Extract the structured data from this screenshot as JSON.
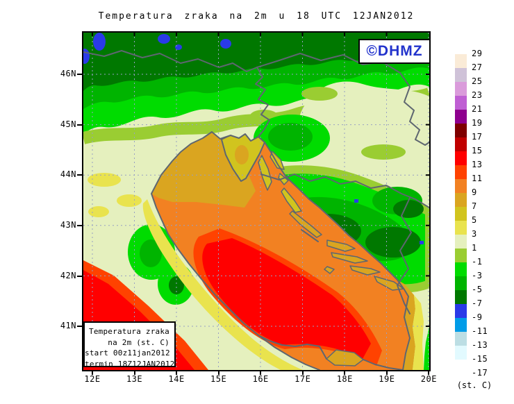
{
  "title": "Temperatura zraka na 2m u 18 UTC 12JAN2012",
  "badge": {
    "text": "©DHMZ",
    "color": "#2233CC"
  },
  "map": {
    "lat_labels": [
      "46N",
      "45N",
      "44N",
      "43N",
      "42N",
      "41N"
    ],
    "lon_labels": [
      "12E",
      "13E",
      "14E",
      "15E",
      "16E",
      "17E",
      "18E",
      "19E",
      "20E"
    ]
  },
  "legend_box": {
    "lines": [
      "Temperatura zraka",
      "na 2m (st. C)",
      "start 00z11jan2012",
      "termin 18Z12JAN2012"
    ]
  },
  "colorbar": {
    "unit": "(st. C)",
    "tick_labels": [
      "29",
      "27",
      "25",
      "23",
      "21",
      "19",
      "17",
      "15",
      "13",
      "11",
      "9",
      "7",
      "5",
      "3",
      "1",
      "-1",
      "-3",
      "-5",
      "-7",
      "-9",
      "-11",
      "-13",
      "-15",
      "-17"
    ],
    "colors": [
      "#FAEBD7",
      "#CFC2D8",
      "#DA9BDB",
      "#BF5FD3",
      "#8E008E",
      "#7E0000",
      "#C00000",
      "#FF0000",
      "#FF4200",
      "#F28122",
      "#DAA520",
      "#D1C41E",
      "#E9E34E",
      "#E5F0BE",
      "#9ACD32",
      "#00DC00",
      "#00B400",
      "#007800",
      "#2A3AE8",
      "#009CE8",
      "#BCDEE4",
      "#E2FAFF",
      "#FFFFFF"
    ]
  }
}
